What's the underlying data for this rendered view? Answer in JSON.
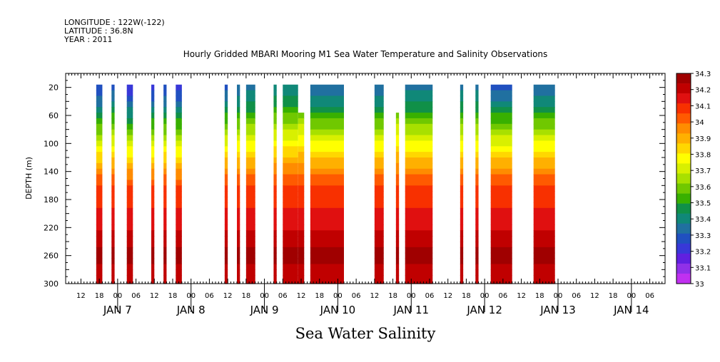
{
  "header": {
    "longitude": "LONGITUDE : 122W(-122)",
    "latitude": "LATITUDE : 36.8N",
    "year": "YEAR : 2011"
  },
  "chart_data": {
    "type": "heatmap",
    "title": "Hourly Gridded MBARI Mooring M1 Sea Water Temperature and Salinity Observations",
    "bottom_title": "Sea Water Salinity",
    "ylabel": "DEPTH (m)",
    "y_reversed": true,
    "ylim": [
      300,
      0
    ],
    "y_ticks": [
      20,
      60,
      100,
      140,
      180,
      220,
      260,
      300
    ],
    "x_start": "2011-01-06 07:00",
    "x_end": "2011-01-14 11:00",
    "x_hour_ticks": [
      "12",
      "18",
      "00",
      "06",
      "12",
      "18",
      "00",
      "06",
      "12",
      "18",
      "00",
      "06",
      "12",
      "18",
      "00",
      "06",
      "12",
      "18",
      "00",
      "06",
      "12",
      "18",
      "00",
      "06",
      "12",
      "18",
      "00",
      "06",
      "12",
      "18",
      "00",
      "06"
    ],
    "x_day_labels": [
      "JAN  7",
      "JAN  8",
      "JAN  9",
      "JAN 10",
      "JAN 11",
      "JAN 12",
      "JAN 13",
      "JAN 14"
    ],
    "colorbar": {
      "levels": [
        "34.3",
        "34.2",
        "34.1",
        "34",
        "33.9",
        "33.8",
        "33.7",
        "33.6",
        "33.5",
        "33.4",
        "33.3",
        "33.2",
        "33.1",
        "33"
      ],
      "colors": [
        "#a00000",
        "#c00000",
        "#e01010",
        "#f83000",
        "#ff5a00",
        "#ff8c00",
        "#ffb000",
        "#ffd700",
        "#ffff00",
        "#d8f000",
        "#a8e000",
        "#70c800",
        "#38b000",
        "#109048",
        "#108878",
        "#2070a0",
        "#2050c0",
        "#3838d8",
        "#6020e0",
        "#9030e8",
        "#c030f0"
      ]
    },
    "profile": [
      {
        "depth": 20,
        "salinity": 33.3
      },
      {
        "depth": 40,
        "salinity": 33.38
      },
      {
        "depth": 60,
        "salinity": 33.5
      },
      {
        "depth": 80,
        "salinity": 33.62
      },
      {
        "depth": 100,
        "salinity": 33.74
      },
      {
        "depth": 120,
        "salinity": 33.85
      },
      {
        "depth": 140,
        "salinity": 33.96
      },
      {
        "depth": 160,
        "salinity": 34.05
      },
      {
        "depth": 180,
        "salinity": 34.1
      },
      {
        "depth": 200,
        "salinity": 34.13
      },
      {
        "depth": 220,
        "salinity": 34.17
      },
      {
        "depth": 240,
        "salinity": 34.22
      },
      {
        "depth": 260,
        "salinity": 34.26
      },
      {
        "depth": 280,
        "salinity": 34.22
      },
      {
        "depth": 300,
        "salinity": 34.18
      }
    ],
    "data_segments": [
      {
        "start": "2011-01-06 17:00",
        "end": "2011-01-06 19:00",
        "surface": 33.25
      },
      {
        "start": "2011-01-06 22:00",
        "end": "2011-01-06 23:00",
        "surface": 33.3
      },
      {
        "start": "2011-01-07 03:00",
        "end": "2011-01-07 05:00",
        "surface": 33.2
      },
      {
        "start": "2011-01-07 11:00",
        "end": "2011-01-07 12:00",
        "surface": 33.22
      },
      {
        "start": "2011-01-07 15:00",
        "end": "2011-01-07 16:00",
        "surface": 33.25
      },
      {
        "start": "2011-01-07 19:00",
        "end": "2011-01-07 21:00",
        "surface": 33.22
      },
      {
        "start": "2011-01-08 11:00",
        "end": "2011-01-08 12:00",
        "surface": 33.3
      },
      {
        "start": "2011-01-08 15:00",
        "end": "2011-01-08 16:00",
        "surface": 33.32
      },
      {
        "start": "2011-01-08 18:00",
        "end": "2011-01-08 21:00",
        "surface": 33.35
      },
      {
        "start": "2011-01-09 03:00",
        "end": "2011-01-09 04:00",
        "surface": 33.4
      },
      {
        "start": "2011-01-09 06:00",
        "end": "2011-01-09 11:00",
        "surface": 33.4
      },
      {
        "start": "2011-01-09 11:00",
        "end": "2011-01-09 13:00",
        "surface": 33.45,
        "top_depth": 60
      },
      {
        "start": "2011-01-09 15:00",
        "end": "2011-01-10 02:00",
        "surface": 33.32
      },
      {
        "start": "2011-01-10 12:00",
        "end": "2011-01-10 15:00",
        "surface": 33.32
      },
      {
        "start": "2011-01-10 19:00",
        "end": "2011-01-10 20:00",
        "surface": 33.45,
        "top_depth": 60
      },
      {
        "start": "2011-01-10 22:00",
        "end": "2011-01-11 07:00",
        "surface": 33.35
      },
      {
        "start": "2011-01-11 16:00",
        "end": "2011-01-11 17:00",
        "surface": 33.35
      },
      {
        "start": "2011-01-11 21:00",
        "end": "2011-01-11 22:00",
        "surface": 33.35
      },
      {
        "start": "2011-01-12 02:00",
        "end": "2011-01-12 09:00",
        "surface": 33.3
      },
      {
        "start": "2011-01-12 16:00",
        "end": "2011-01-12 23:00",
        "surface": 33.33
      }
    ]
  }
}
